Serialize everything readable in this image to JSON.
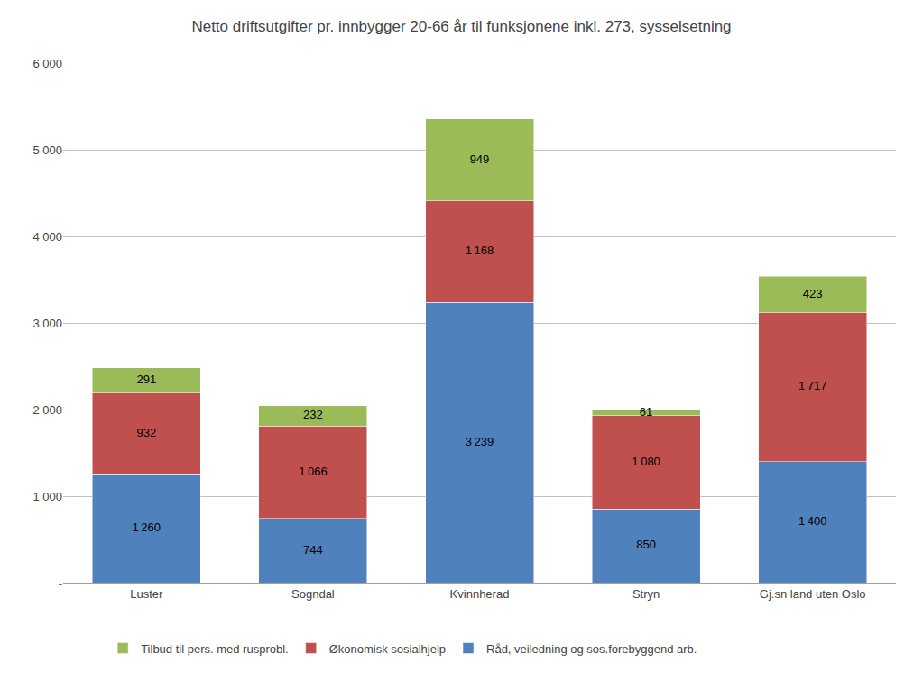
{
  "chart_data": {
    "type": "bar",
    "title": "Netto driftsutgifter pr. innbygger 20-66 år til funksjonene inkl. 273, sysselsetning",
    "categories": [
      "Luster",
      "Sogndal",
      "Kvinnherad",
      "Stryn",
      "Gj.sn land uten Oslo"
    ],
    "series": [
      {
        "name": "Råd, veiledning og sos.forebyggend arb.",
        "color": "#4F81BD",
        "values": [
          1260,
          744,
          3239,
          850,
          1400
        ],
        "value_labels": [
          "1 260",
          "744",
          "3 239",
          "850",
          "1 400"
        ]
      },
      {
        "name": "Økonomisk sosialhjelp",
        "color": "#C0504D",
        "values": [
          932,
          1066,
          1168,
          1080,
          1717
        ],
        "value_labels": [
          "932",
          "1 066",
          "1 168",
          "1 080",
          "1 717"
        ]
      },
      {
        "name": "Tilbud til pers. med rusprobl.",
        "color": "#9BBB59",
        "values": [
          291,
          232,
          949,
          61,
          423
        ]
      }
    ],
    "stacked": true,
    "data_labels": true,
    "ylim": [
      0,
      6000
    ],
    "yticks": [
      {
        "value": 0,
        "label": "-"
      },
      {
        "value": 1000,
        "label": "1 000"
      },
      {
        "value": 2000,
        "label": "2 000"
      },
      {
        "value": 3000,
        "label": "3 000"
      },
      {
        "value": 4000,
        "label": "4 000"
      },
      {
        "value": 5000,
        "label": "5 000"
      },
      {
        "value": 6000,
        "label": "6 000"
      }
    ],
    "grid": true,
    "legend": "bottom"
  }
}
